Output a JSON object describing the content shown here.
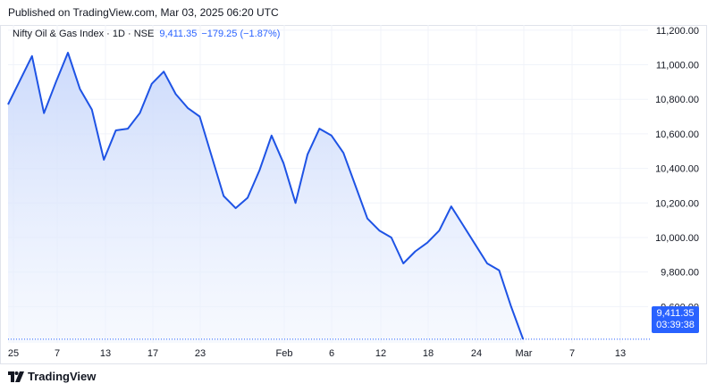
{
  "header": {
    "published": "Published on TradingView.com, Mar 03, 2025 06:20 UTC"
  },
  "legend": {
    "title": "Nifty Oil & Gas Index · 1D · NSE",
    "value": "9,411.35",
    "change": "−179.25 (−1.87%)"
  },
  "price_tag": {
    "price": "9,411.35",
    "countdown": "03:39:38"
  },
  "footer": {
    "brand": "TradingView"
  },
  "colors": {
    "line": "#1e53e5",
    "accent": "#2962ff",
    "fill_top": "#c9d8fb",
    "grid": "#f0f3fa"
  },
  "chart_data": {
    "type": "area",
    "title": "Nifty Oil & Gas Index · 1D · NSE",
    "xlabel": "",
    "ylabel": "",
    "x_ticks": [
      "25",
      "7",
      "13",
      "17",
      "23",
      "Feb",
      "6",
      "12",
      "18",
      "24",
      "Mar",
      "7",
      "13"
    ],
    "y_ticks": [
      "9,600.00",
      "9,800.00",
      "10,000.00",
      "10,200.00",
      "10,400.00",
      "10,600.00",
      "10,800.00",
      "11,000.00",
      "11,200.00"
    ],
    "ylim": [
      9390,
      11230
    ],
    "grid": true,
    "series": [
      {
        "values": [
          10770,
          10910,
          11050,
          10720,
          10900,
          11070,
          10860,
          10740,
          10450,
          10620,
          10630,
          10720,
          10890,
          10960,
          10830,
          10750,
          10700,
          10470,
          10240,
          10170,
          10230,
          10390,
          10590,
          10430,
          10200,
          10480,
          10630,
          10590,
          10490,
          10300,
          10110,
          10040,
          10000,
          9850,
          9920,
          9970,
          10040,
          10180,
          10070,
          9960,
          9850,
          9810,
          9600,
          9411.35
        ]
      }
    ],
    "last_value": "9,411.35"
  }
}
